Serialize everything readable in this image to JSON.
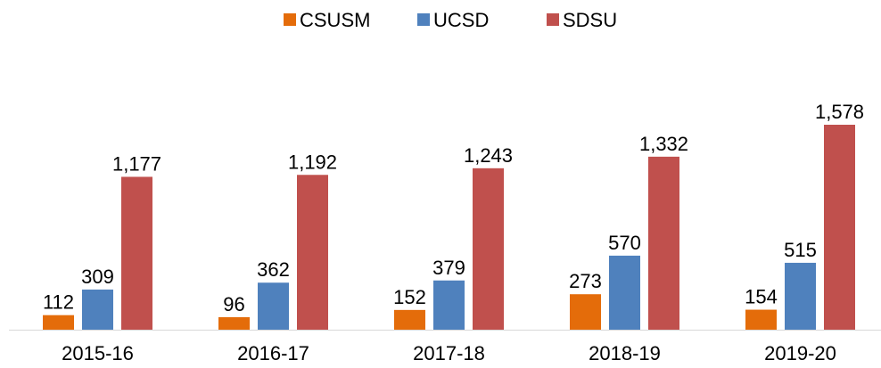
{
  "chart_data": {
    "type": "bar",
    "categories": [
      "2015-16",
      "2016-17",
      "2017-18",
      "2018-19",
      "2019-20"
    ],
    "series": [
      {
        "name": "CSUSM",
        "color": "#e46c0a",
        "values": [
          112,
          96,
          152,
          273,
          154
        ]
      },
      {
        "name": "UCSD",
        "color": "#4f81bd",
        "values": [
          309,
          362,
          379,
          570,
          515
        ]
      },
      {
        "name": "SDSU",
        "color": "#c0504d",
        "values": [
          1177,
          1192,
          1243,
          1332,
          1578
        ],
        "value_labels": [
          "1,177",
          "1,192",
          "1,243",
          "1,332",
          "1,578"
        ]
      }
    ],
    "legend": "top"
  }
}
